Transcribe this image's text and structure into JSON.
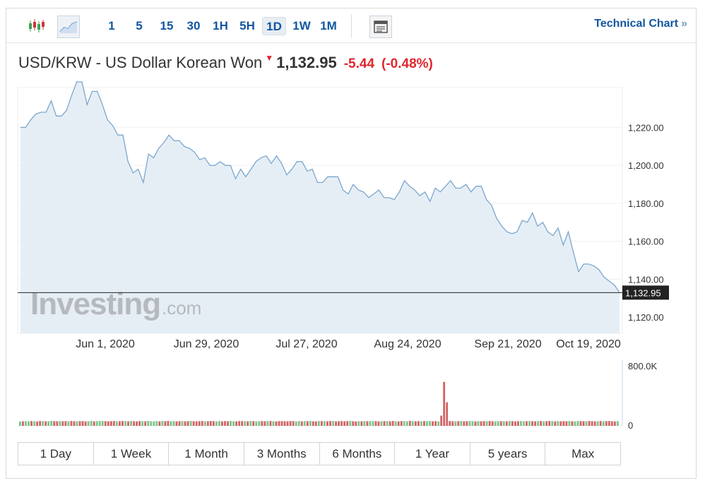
{
  "toolbar": {
    "intervals": [
      "1",
      "5",
      "15",
      "30",
      "1H",
      "5H",
      "1D",
      "1W",
      "1M"
    ],
    "active_interval": "1D",
    "technical_chart_label": "Technical Chart",
    "technical_chart_chevron": "»"
  },
  "header": {
    "pair": "USD/KRW - US Dollar Korean Won",
    "price": "1,132.95",
    "change": "-5.44",
    "change_pct": "(-0.48%)",
    "direction_icon": "down-arrow-icon"
  },
  "watermark": {
    "brand": "Investing",
    "suffix": ".com"
  },
  "colors": {
    "line": "#7aa7cf",
    "area": "#e6eef5",
    "down": "#e1262d",
    "vol_up": "#7cc48d",
    "vol_down": "#d16464",
    "link": "#1256a0"
  },
  "chart_data": {
    "type": "area",
    "title": "USD/KRW - US Dollar Korean Won",
    "x_ticks": [
      "Jun 1, 2020",
      "Jun 29, 2020",
      "Jul 27, 2020",
      "Aug 24, 2020",
      "Sep 21, 2020",
      "Oct 19, 2020"
    ],
    "y_ticks": [
      "1,220.00",
      "1,200.00",
      "1,180.00",
      "1,160.00",
      "1,140.00",
      "1,120.00"
    ],
    "ylim": [
      1111.5,
      1241
    ],
    "current_price_label": "1,132.95",
    "current_price": 1132.95,
    "grid": true,
    "series": [
      {
        "values": [
          1220,
          1220,
          1224,
          1227,
          1228,
          1228,
          1234,
          1226,
          1226,
          1229,
          1237,
          1244,
          1244,
          1232,
          1239,
          1239,
          1232,
          1224,
          1221,
          1216,
          1216,
          1202,
          1196,
          1198,
          1191,
          1206,
          1204,
          1209,
          1212,
          1216,
          1213,
          1213,
          1210,
          1209,
          1207,
          1203,
          1204,
          1200,
          1200,
          1202,
          1200,
          1200,
          1193,
          1198,
          1194,
          1198,
          1202,
          1204,
          1205,
          1201,
          1205,
          1201,
          1195,
          1198,
          1202,
          1202,
          1197,
          1198,
          1191,
          1191,
          1194,
          1194,
          1194,
          1187,
          1185,
          1190,
          1187,
          1186,
          1183,
          1185,
          1187,
          1183,
          1183,
          1182,
          1186,
          1192,
          1189,
          1187,
          1184,
          1186,
          1181,
          1188,
          1186,
          1189,
          1192,
          1188,
          1188,
          1190,
          1186,
          1189,
          1189,
          1182,
          1179,
          1172,
          1168,
          1165,
          1164,
          1165,
          1171,
          1170,
          1175,
          1168,
          1170,
          1165,
          1163,
          1167,
          1158,
          1165,
          1154,
          1144,
          1148,
          1148,
          1147,
          1145,
          1141,
          1139,
          1137,
          1132.95
        ]
      }
    ],
    "volume": {
      "ylabels": [
        "800.0K",
        "0"
      ],
      "ylim": [
        0,
        800000
      ],
      "values": [
        55000,
        58000,
        60000,
        57000,
        61000,
        59000,
        56000,
        62000,
        60000,
        58000,
        57000,
        63000,
        60000,
        59000,
        61000,
        58000,
        60000,
        57000,
        62000,
        59000,
        58000,
        60000,
        61000,
        57000,
        59000,
        62000,
        58000,
        60000,
        63000,
        61000,
        59000,
        58000,
        60000,
        62000,
        57000,
        59000,
        61000,
        60000,
        58000,
        62000,
        59000,
        57000,
        61000,
        60000,
        58000,
        63000,
        59000,
        58000,
        60000,
        57000,
        61000,
        59000,
        62000,
        58000,
        60000,
        57000,
        59000,
        61000,
        58000,
        60000,
        62000,
        59000,
        57000,
        60000,
        61000,
        58000,
        59000,
        62000,
        60000,
        57000,
        61000,
        58000,
        60000,
        59000,
        62000,
        58000,
        57000,
        61000,
        60000,
        59000,
        58000,
        62000,
        60000,
        57000,
        59000,
        61000,
        58000,
        60000,
        62000,
        59000,
        57000,
        60000,
        61000,
        58000,
        59000,
        62000,
        60000,
        57000,
        61000,
        58000,
        60000,
        59000,
        62000,
        58000,
        57000,
        61000,
        60000,
        59000,
        58000,
        62000,
        60000,
        57000,
        59000,
        61000,
        58000,
        60000,
        62000,
        59000,
        57000,
        60000,
        58000,
        61000,
        59000,
        62000,
        58000,
        60000,
        57000,
        59000,
        61000,
        60000,
        58000,
        62000,
        59000,
        57000,
        61000,
        60000,
        58000,
        63000,
        59000,
        58000,
        60000,
        57000,
        61000,
        59000,
        62000,
        58000,
        60000,
        57000,
        130000,
        560000,
        300000,
        62000,
        59000,
        57000,
        60000,
        61000,
        58000,
        59000,
        62000,
        60000,
        57000,
        61000,
        58000,
        60000,
        59000,
        62000,
        58000,
        57000,
        61000,
        60000,
        59000,
        58000,
        62000,
        60000,
        57000,
        59000,
        61000,
        58000,
        60000,
        62000,
        59000,
        57000,
        60000,
        61000,
        58000,
        59000,
        62000,
        60000,
        57000,
        61000,
        58000,
        60000,
        59000,
        62000,
        58000,
        57000,
        61000,
        60000,
        59000,
        58000,
        62000,
        60000,
        57000,
        59000,
        61000,
        58000,
        60000,
        62000,
        59000,
        57000,
        60000
      ],
      "up_flags": [
        1,
        0,
        1,
        1,
        0,
        1,
        0,
        0,
        1,
        0,
        1,
        1,
        0,
        0,
        1,
        0,
        0,
        1,
        0,
        0,
        1,
        0,
        0,
        0,
        1,
        1,
        0,
        1,
        1,
        1,
        0,
        0,
        0,
        0,
        1,
        0,
        0,
        1,
        0,
        1,
        0,
        0,
        0,
        1,
        0,
        1,
        1,
        1,
        1,
        0,
        1,
        0,
        0,
        1,
        1,
        0,
        0,
        1,
        0,
        0,
        1,
        0,
        0,
        0,
        0,
        1,
        0,
        0,
        0,
        1,
        1,
        0,
        0,
        0,
        1,
        1,
        0,
        0,
        0,
        1,
        0,
        1,
        0,
        1,
        1,
        0,
        0,
        1,
        0,
        1,
        0,
        0,
        0,
        0,
        0,
        0,
        0,
        1,
        1,
        0,
        1,
        0,
        1,
        0,
        0,
        1,
        0,
        1,
        0,
        0,
        1,
        0,
        0,
        0,
        0,
        0,
        1,
        0,
        0,
        1,
        0,
        1,
        0,
        1,
        1,
        0,
        0,
        1,
        0,
        1,
        0,
        0,
        1,
        0,
        0,
        1,
        1,
        0,
        1,
        0,
        0,
        1,
        0,
        1,
        1,
        0,
        0,
        1,
        0,
        0,
        0,
        0,
        0,
        1,
        0,
        1,
        0,
        0,
        1,
        1,
        0,
        1,
        0,
        0,
        1,
        0,
        0,
        1,
        1,
        0,
        1,
        0,
        1,
        0,
        0,
        0,
        1,
        1,
        0,
        1,
        0,
        0,
        1,
        0,
        1,
        0,
        0,
        1,
        0,
        1,
        0,
        0,
        0,
        1,
        0,
        1,
        1,
        0,
        0,
        1,
        0,
        0,
        0,
        1,
        0,
        1,
        0,
        0,
        0,
        0,
        1,
        0,
        0
      ]
    }
  },
  "time_ranges": [
    "1 Day",
    "1 Week",
    "1 Month",
    "3 Months",
    "6 Months",
    "1 Year",
    "5 years",
    "Max"
  ]
}
